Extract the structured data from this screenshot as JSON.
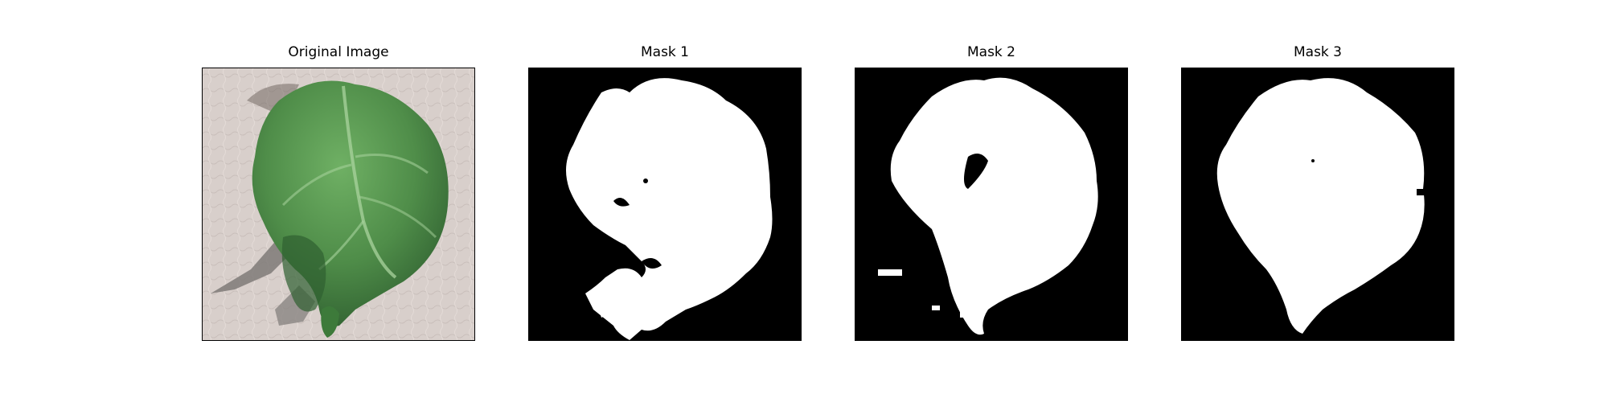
{
  "panels": [
    {
      "title": "Original Image",
      "kind": "photo"
    },
    {
      "title": "Mask 1",
      "kind": "mask"
    },
    {
      "title": "Mask 2",
      "kind": "mask"
    },
    {
      "title": "Mask 3",
      "kind": "mask"
    }
  ],
  "colors": {
    "background": "#ffffff",
    "mask_foreground": "#ffffff",
    "mask_background": "#000000",
    "leaf_green": "#5a9a52",
    "leaf_dark": "#2f5f30",
    "surface": "#d8cfcb",
    "shadow": "#7f7a78"
  }
}
